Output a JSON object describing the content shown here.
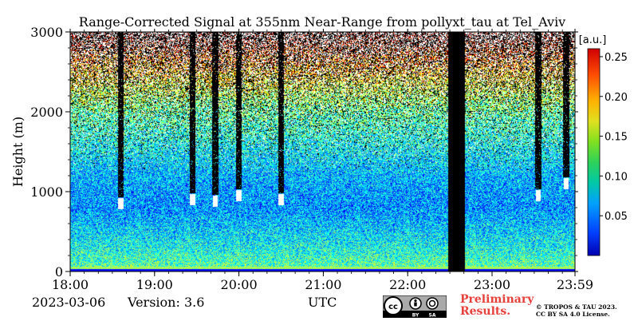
{
  "chart_data": {
    "type": "heatmap",
    "title": "Range-Corrected Signal at 355nm Near-Range from pollyxt_tau at Tel_Aviv",
    "xlabel": "UTC",
    "ylabel": "Height (m)",
    "x_tick_labels": [
      "18:00",
      "19:00",
      "20:00",
      "21:00",
      "22:00",
      "23:00",
      "23:59"
    ],
    "x_ticks_hours": [
      18,
      19,
      20,
      21,
      22,
      23,
      23.983
    ],
    "xlim_hours": [
      18,
      23.983
    ],
    "y_tick_labels": [
      "0",
      "1000",
      "2000",
      "3000"
    ],
    "y_ticks": [
      0,
      1000,
      2000,
      3000
    ],
    "ylim": [
      0,
      3000
    ],
    "colorbar": {
      "unit": "[a.u.]",
      "ticks": [
        0.05,
        0.1,
        0.15,
        0.2,
        0.25
      ],
      "tick_labels": [
        "0.05",
        "0.10",
        "0.15",
        "0.20",
        "0.25"
      ],
      "range": [
        0.0,
        0.26
      ],
      "colormap": "jet"
    },
    "data_gaps_hours": [
      [
        22.48,
        22.68
      ]
    ],
    "cloud_columns": [
      {
        "t": 18.6,
        "base": 850,
        "top": 3000
      },
      {
        "t": 19.45,
        "base": 900,
        "top": 3000
      },
      {
        "t": 19.72,
        "base": 880,
        "top": 3000
      },
      {
        "t": 20.0,
        "base": 950,
        "top": 3000
      },
      {
        "t": 20.5,
        "base": 900,
        "top": 3000
      },
      {
        "t": 23.55,
        "base": 950,
        "top": 3000
      },
      {
        "t": 23.88,
        "base": 1100,
        "top": 3000
      }
    ],
    "profile": [
      {
        "h": 0,
        "v": 0.08
      },
      {
        "h": 50,
        "v": 0.12
      },
      {
        "h": 300,
        "v": 0.1
      },
      {
        "h": 800,
        "v": 0.07
      },
      {
        "h": 1200,
        "v": 0.08
      },
      {
        "h": 2000,
        "v": 0.12
      },
      {
        "h": 2700,
        "v": 0.2
      },
      {
        "h": 3000,
        "v": 0.25
      }
    ],
    "grid": false
  },
  "footer": {
    "date": "2023-03-06",
    "version": "Version: 3.6",
    "xlabel_utc": "UTC",
    "preliminary_line1": "Preliminary",
    "preliminary_line2": "Results.",
    "copyright_line1": "© TROPOS & TAU 2023.",
    "copyright_line2": "CC BY SA 4.0 License."
  },
  "colors": {
    "preliminary_text": "#e8413c",
    "gap": "#000000"
  }
}
